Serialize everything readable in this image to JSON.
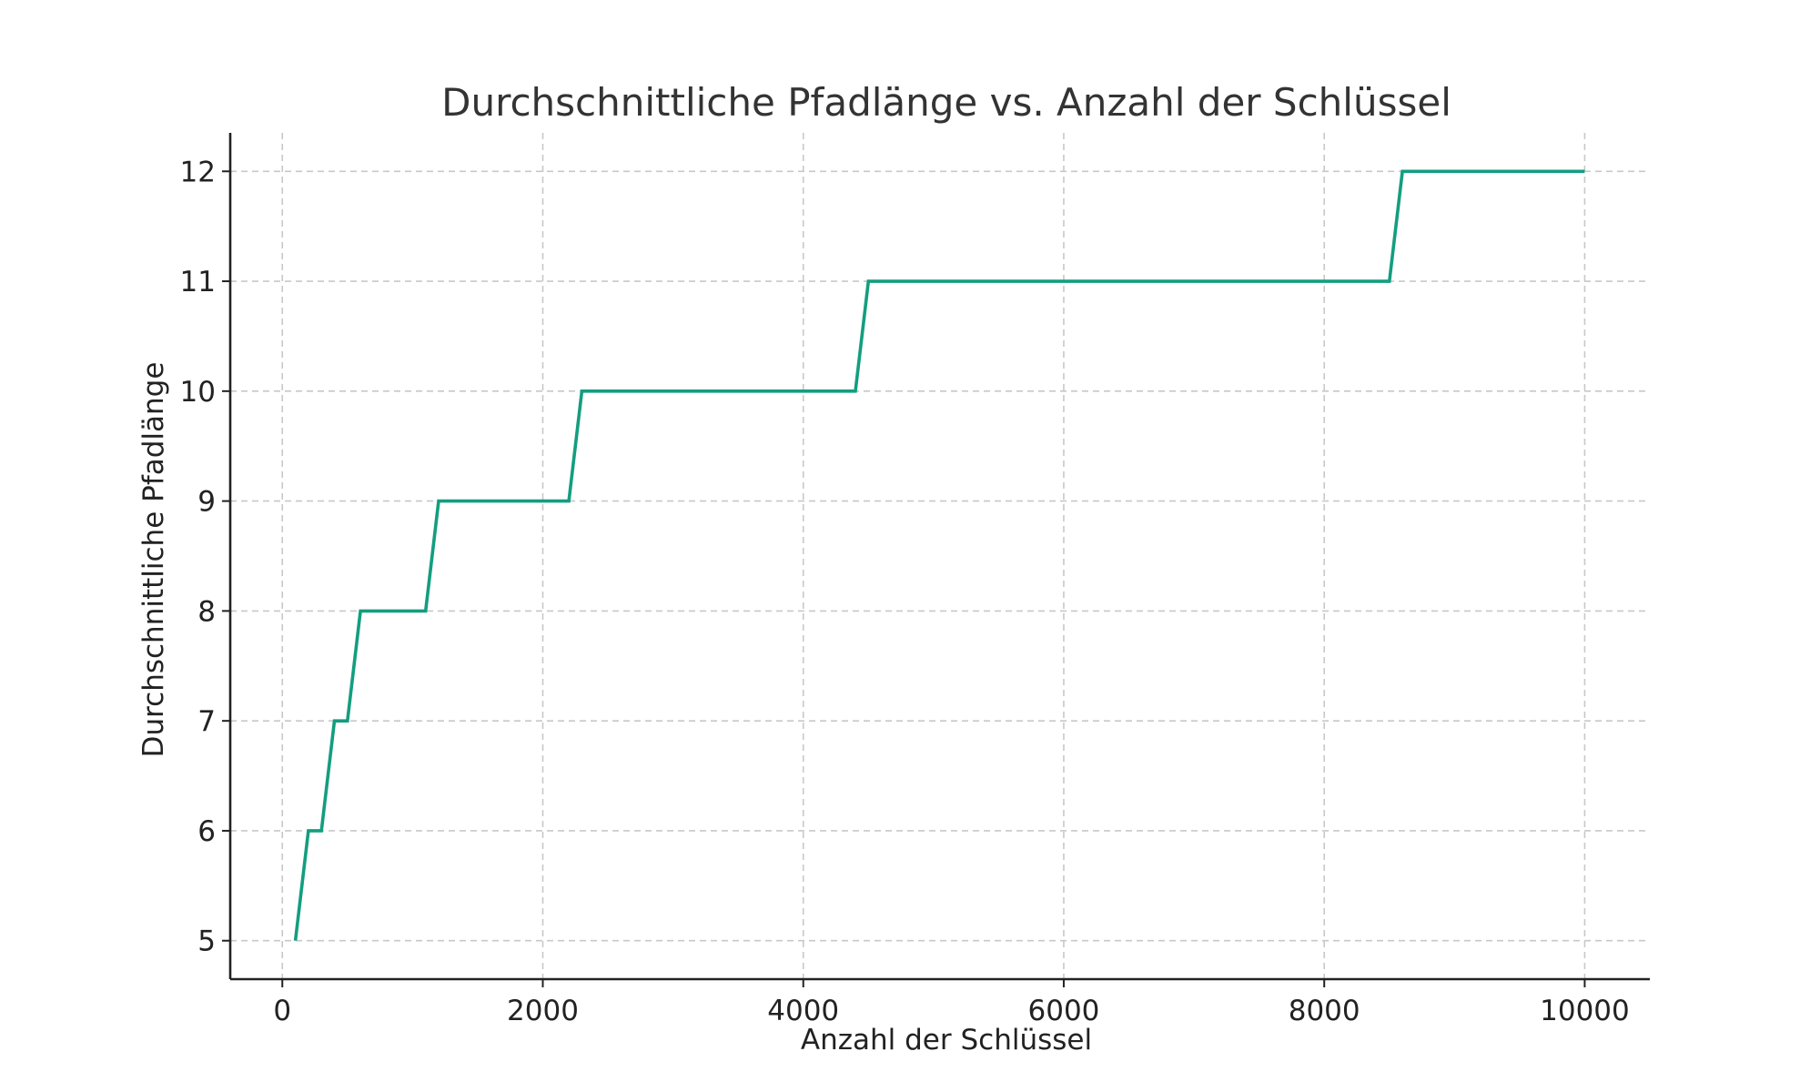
{
  "chart_data": {
    "type": "line",
    "title": "Durchschnittliche Pfadlänge vs. Anzahl der Schlüssel",
    "xlabel": "Anzahl der Schlüssel",
    "ylabel": "Durchschnittliche Pfadlänge",
    "xlim": [
      -400,
      10500
    ],
    "ylim": [
      4.65,
      12.35
    ],
    "xticks": [
      0,
      2000,
      4000,
      6000,
      8000,
      10000
    ],
    "xtick_labels": [
      "0",
      "2000",
      "4000",
      "6000",
      "8000",
      "10000"
    ],
    "yticks": [
      5,
      6,
      7,
      8,
      9,
      10,
      11,
      12
    ],
    "ytick_labels": [
      "5",
      "6",
      "7",
      "8",
      "9",
      "10",
      "11",
      "12"
    ],
    "grid": true,
    "series": [
      {
        "color": "#139e7f",
        "x": [
          100,
          200,
          300,
          400,
          500,
          600,
          700,
          800,
          900,
          1000,
          1100,
          1200,
          1300,
          1400,
          1500,
          1600,
          1700,
          1800,
          1900,
          2000,
          2100,
          2200,
          2300,
          4400,
          4500,
          8500,
          8600,
          10000
        ],
        "y": [
          5,
          6,
          6,
          7,
          7,
          8,
          8,
          8,
          8,
          8,
          8,
          9,
          9,
          9,
          9,
          9,
          9,
          9,
          9,
          9,
          9,
          9,
          10,
          10,
          11,
          11,
          12,
          12
        ]
      }
    ]
  }
}
